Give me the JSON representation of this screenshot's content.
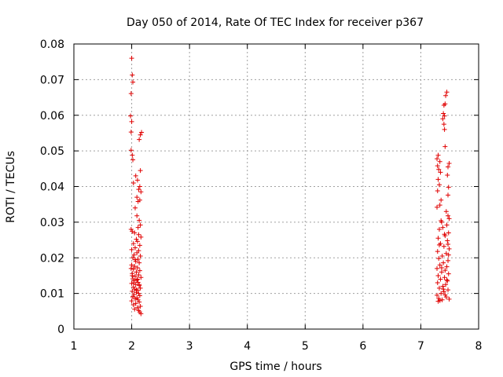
{
  "chart_data": {
    "type": "scatter",
    "title": "Day 050 of 2014, Rate Of TEC Index for receiver p367",
    "xlabel": "GPS time / hours",
    "ylabel": "ROTI / TECUs",
    "xlim": [
      1,
      8
    ],
    "ylim": [
      0,
      0.08
    ],
    "xticks": [
      1,
      2,
      3,
      4,
      5,
      6,
      7,
      8
    ],
    "yticks": [
      0,
      0.01,
      0.02,
      0.03,
      0.04,
      0.05,
      0.06,
      0.07,
      0.08
    ],
    "xtick_labels": [
      "1",
      "2",
      "3",
      "4",
      "5",
      "6",
      "7",
      "8"
    ],
    "ytick_labels": [
      "0",
      "0.01",
      "0.02",
      "0.03",
      "0.04",
      "0.05",
      "0.06",
      "0.07",
      "0.08"
    ],
    "grid": true,
    "marker": "+",
    "marker_color": "#e00000",
    "series": [
      {
        "name": "ROTI",
        "points": [
          [
            2.0,
            0.076
          ],
          [
            2.01,
            0.0713
          ],
          [
            2.02,
            0.0693
          ],
          [
            1.99,
            0.0661
          ],
          [
            1.98,
            0.0598
          ],
          [
            2.0,
            0.0582
          ],
          [
            1.99,
            0.0553
          ],
          [
            2.17,
            0.0552
          ],
          [
            2.15,
            0.0545
          ],
          [
            2.13,
            0.0532
          ],
          [
            1.99,
            0.0502
          ],
          [
            2.01,
            0.0488
          ],
          [
            2.02,
            0.0475
          ],
          [
            2.15,
            0.0445
          ],
          [
            2.07,
            0.043
          ],
          [
            2.1,
            0.0418
          ],
          [
            2.03,
            0.041
          ],
          [
            2.14,
            0.04
          ],
          [
            2.12,
            0.0392
          ],
          [
            2.16,
            0.0385
          ],
          [
            2.09,
            0.037
          ],
          [
            2.14,
            0.0362
          ],
          [
            2.11,
            0.0358
          ],
          [
            2.06,
            0.034
          ],
          [
            2.09,
            0.0318
          ],
          [
            2.13,
            0.0305
          ],
          [
            2.15,
            0.0292
          ],
          [
            2.11,
            0.0285
          ],
          [
            1.99,
            0.028
          ],
          [
            2.01,
            0.0274
          ],
          [
            2.05,
            0.027
          ],
          [
            2.12,
            0.0265
          ],
          [
            2.16,
            0.0258
          ],
          [
            2.08,
            0.0252
          ],
          [
            2.1,
            0.0246
          ],
          [
            2.03,
            0.024
          ],
          [
            2.14,
            0.0235
          ],
          [
            2.06,
            0.0228
          ],
          [
            2.0,
            0.0223
          ],
          [
            2.12,
            0.022
          ],
          [
            2.09,
            0.0214
          ],
          [
            2.04,
            0.0208
          ],
          [
            2.15,
            0.0205
          ],
          [
            2.02,
            0.02
          ],
          [
            2.11,
            0.0196
          ],
          [
            2.07,
            0.019
          ],
          [
            2.13,
            0.0186
          ],
          [
            2.0,
            0.018
          ],
          [
            2.05,
            0.0176
          ],
          [
            2.1,
            0.0172
          ],
          [
            2.03,
            0.0168
          ],
          [
            2.14,
            0.0164
          ],
          [
            2.08,
            0.016
          ],
          [
            2.01,
            0.0156
          ],
          [
            2.12,
            0.0152
          ],
          [
            2.06,
            0.0148
          ],
          [
            2.16,
            0.0145
          ],
          [
            2.02,
            0.0141
          ],
          [
            2.09,
            0.0138
          ],
          [
            2.04,
            0.0135
          ],
          [
            2.11,
            0.0131
          ],
          [
            2.0,
            0.0128
          ],
          [
            2.07,
            0.0125
          ],
          [
            2.13,
            0.0122
          ],
          [
            2.03,
            0.0118
          ],
          [
            2.15,
            0.0115
          ],
          [
            2.05,
            0.0112
          ],
          [
            2.1,
            0.0109
          ],
          [
            2.01,
            0.0106
          ],
          [
            2.08,
            0.0103
          ],
          [
            2.12,
            0.01
          ],
          [
            2.04,
            0.0097
          ],
          [
            2.14,
            0.0094
          ],
          [
            2.02,
            0.0091
          ],
          [
            2.09,
            0.0088
          ],
          [
            2.06,
            0.0085
          ],
          [
            2.11,
            0.0082
          ],
          [
            2.0,
            0.0079
          ],
          [
            2.13,
            0.0076
          ],
          [
            2.07,
            0.0072
          ],
          [
            2.03,
            0.0068
          ],
          [
            2.15,
            0.0064
          ],
          [
            2.1,
            0.006
          ],
          [
            2.05,
            0.0056
          ],
          [
            2.12,
            0.0052
          ],
          [
            2.14,
            0.0048
          ],
          [
            2.16,
            0.0043
          ],
          [
            2.01,
            0.015
          ],
          [
            2.04,
            0.013
          ],
          [
            2.08,
            0.011
          ],
          [
            1.99,
            0.017
          ],
          [
            2.06,
            0.0195
          ],
          [
            2.1,
            0.014
          ],
          [
            2.13,
            0.0125
          ],
          [
            2.02,
            0.009
          ],
          [
            7.45,
            0.0665
          ],
          [
            7.43,
            0.0655
          ],
          [
            7.42,
            0.0632
          ],
          [
            7.4,
            0.0628
          ],
          [
            7.39,
            0.0605
          ],
          [
            7.41,
            0.0598
          ],
          [
            7.38,
            0.059
          ],
          [
            7.4,
            0.0575
          ],
          [
            7.41,
            0.056
          ],
          [
            7.42,
            0.0512
          ],
          [
            7.3,
            0.0488
          ],
          [
            7.28,
            0.0478
          ],
          [
            7.33,
            0.047
          ],
          [
            7.49,
            0.0465
          ],
          [
            7.29,
            0.0458
          ],
          [
            7.47,
            0.0455
          ],
          [
            7.31,
            0.0448
          ],
          [
            7.34,
            0.044
          ],
          [
            7.46,
            0.0432
          ],
          [
            7.3,
            0.042
          ],
          [
            7.32,
            0.0405
          ],
          [
            7.48,
            0.0398
          ],
          [
            7.29,
            0.0388
          ],
          [
            7.47,
            0.0376
          ],
          [
            7.35,
            0.0362
          ],
          [
            7.33,
            0.0348
          ],
          [
            7.28,
            0.0342
          ],
          [
            7.44,
            0.033
          ],
          [
            7.47,
            0.0318
          ],
          [
            7.49,
            0.031
          ],
          [
            7.36,
            0.03
          ],
          [
            7.45,
            0.0292
          ],
          [
            7.38,
            0.0285
          ],
          [
            7.32,
            0.028
          ],
          [
            7.48,
            0.027
          ],
          [
            7.42,
            0.0262
          ],
          [
            7.3,
            0.0255
          ],
          [
            7.46,
            0.0248
          ],
          [
            7.34,
            0.024
          ],
          [
            7.4,
            0.0232
          ],
          [
            7.49,
            0.0225
          ],
          [
            7.29,
            0.0218
          ],
          [
            7.44,
            0.0212
          ],
          [
            7.37,
            0.0205
          ],
          [
            7.31,
            0.0198
          ],
          [
            7.47,
            0.0192
          ],
          [
            7.39,
            0.0186
          ],
          [
            7.33,
            0.018
          ],
          [
            7.45,
            0.0175
          ],
          [
            7.28,
            0.017
          ],
          [
            7.42,
            0.0165
          ],
          [
            7.36,
            0.016
          ],
          [
            7.48,
            0.0155
          ],
          [
            7.3,
            0.015
          ],
          [
            7.41,
            0.0145
          ],
          [
            7.34,
            0.014
          ],
          [
            7.46,
            0.0135
          ],
          [
            7.29,
            0.013
          ],
          [
            7.43,
            0.0125
          ],
          [
            7.38,
            0.012
          ],
          [
            7.32,
            0.0115
          ],
          [
            7.47,
            0.011
          ],
          [
            7.4,
            0.0105
          ],
          [
            7.35,
            0.01
          ],
          [
            7.28,
            0.0095
          ],
          [
            7.44,
            0.009
          ],
          [
            7.31,
            0.0086
          ],
          [
            7.49,
            0.0084
          ],
          [
            7.37,
            0.0082
          ],
          [
            7.33,
            0.008
          ],
          [
            7.3,
            0.0078
          ],
          [
            7.42,
            0.0096
          ],
          [
            7.39,
            0.0112
          ],
          [
            7.45,
            0.0138
          ],
          [
            7.36,
            0.0172
          ],
          [
            7.48,
            0.0208
          ],
          [
            7.32,
            0.0236
          ],
          [
            7.41,
            0.0266
          ],
          [
            7.35,
            0.0304
          ],
          [
            7.47,
            0.0238
          ]
        ]
      }
    ]
  }
}
